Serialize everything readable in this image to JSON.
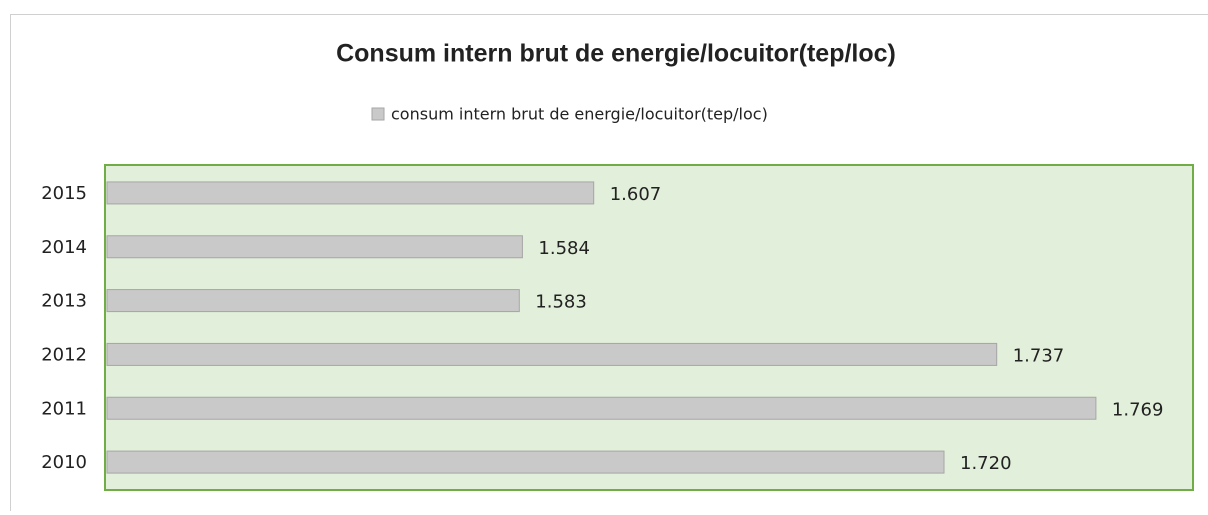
{
  "chart_data": {
    "type": "bar",
    "title": "Consum intern brut de energie/locuitor(tep/loc)",
    "categories": [
      "2010",
      "2011",
      "2012",
      "2013",
      "2014",
      "2015"
    ],
    "series": [
      {
        "name": "consum intern brut de energie/locuitor(tep/loc)",
        "color": "#c9c9c9",
        "values": [
          1.72,
          1.769,
          1.737,
          1.583,
          1.584,
          1.607
        ],
        "value_labels": [
          "1.720",
          "1.769",
          "1.737",
          "1.583",
          "1.584",
          "1.607"
        ]
      }
    ],
    "xlim": [
      1.45,
      1.8
    ]
  }
}
